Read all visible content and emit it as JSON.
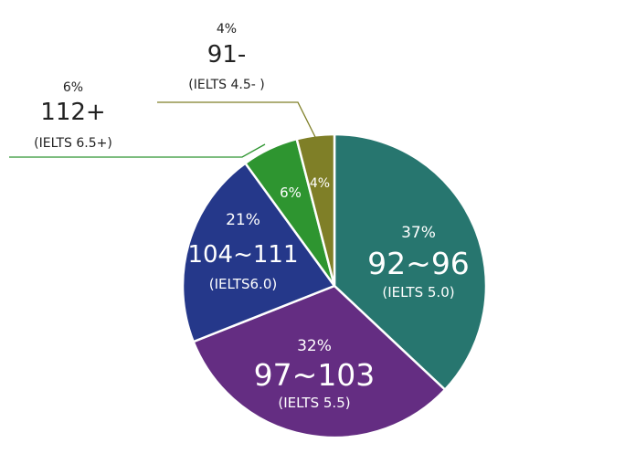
{
  "chart_data": {
    "type": "pie",
    "start_angle_deg": 0,
    "direction": "clockwise",
    "slices": [
      {
        "pct_label": "37%",
        "range": "92~96",
        "ielts": "(IELTS 5.0)",
        "value": 37,
        "color": "#27766f"
      },
      {
        "pct_label": "32%",
        "range": "97~103",
        "ielts": "(IELTS 5.5)",
        "value": 32,
        "color": "#642d82"
      },
      {
        "pct_label": "21%",
        "range": "104~111",
        "ielts": "(IELTS6.0)",
        "value": 21,
        "color": "#25388a"
      },
      {
        "pct_label": "6%",
        "range": "112+",
        "ielts": "(IELTS 6.5+)",
        "value": 6,
        "color": "#2e9530"
      },
      {
        "pct_label": "4%",
        "range": "91-",
        "ielts": "(IELTS 4.5- )",
        "value": 4,
        "color": "#7f7f27"
      }
    ]
  }
}
